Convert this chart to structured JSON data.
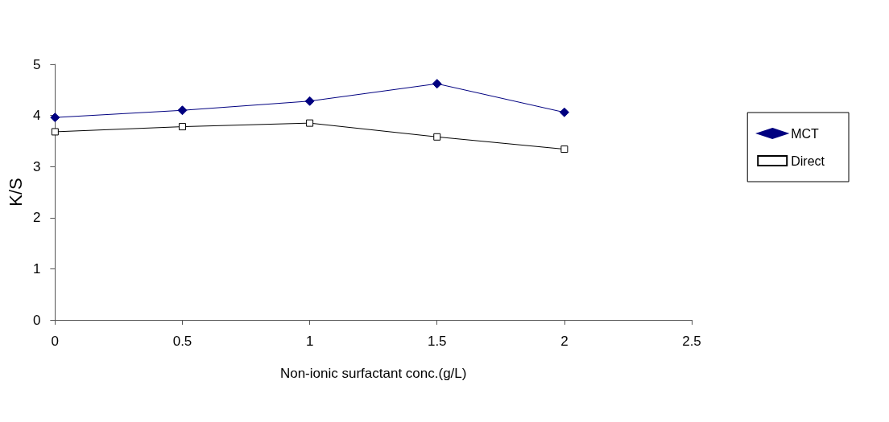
{
  "chart_data": {
    "type": "line",
    "xlabel": "Non-ionic surfactant conc.(g/L)",
    "ylabel": "K/S",
    "x": [
      0,
      0.5,
      1,
      1.5,
      2
    ],
    "series": [
      {
        "name": "MCT",
        "color": "#000080",
        "marker": "diamond",
        "values": [
          3.96,
          4.1,
          4.28,
          4.62,
          4.06
        ]
      },
      {
        "name": "Direct",
        "color": "#000000",
        "marker": "square",
        "values": [
          3.68,
          3.78,
          3.85,
          3.58,
          3.34
        ]
      }
    ],
    "xlim": [
      0,
      2.5
    ],
    "xticks": [
      0,
      0.5,
      1,
      1.5,
      2,
      2.5
    ],
    "ylim": [
      0,
      5
    ],
    "yticks": [
      0,
      1,
      2,
      3,
      4,
      5
    ],
    "grid": false,
    "legend": "right"
  }
}
